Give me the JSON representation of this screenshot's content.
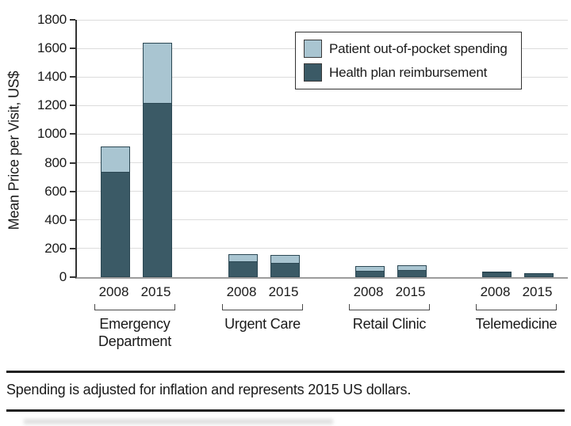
{
  "chart_data": {
    "type": "bar",
    "stacked": true,
    "title": "",
    "xlabel": "",
    "ylabel": "Mean Price per Visit, US$",
    "ylim": [
      0,
      1800
    ],
    "ytick_step": 200,
    "grid": true,
    "legend_position": "top-right",
    "series": [
      {
        "name": "Patient out-of-pocket spending",
        "color": "#a9c5d1"
      },
      {
        "name": "Health plan reimbursement",
        "color": "#3b5a66"
      }
    ],
    "groups": [
      {
        "label_lines": [
          "Emergency",
          "Department"
        ],
        "bars": [
          {
            "year": "2008",
            "health_plan_reimbursement": 730,
            "patient_out_of_pocket": 184
          },
          {
            "year": "2015",
            "health_plan_reimbursement": 1211,
            "patient_out_of_pocket": 426
          }
        ]
      },
      {
        "label_lines": [
          "Urgent Care"
        ],
        "bars": [
          {
            "year": "2008",
            "health_plan_reimbursement": 104,
            "patient_out_of_pocket": 56
          },
          {
            "year": "2015",
            "health_plan_reimbursement": 92,
            "patient_out_of_pocket": 62
          }
        ]
      },
      {
        "label_lines": [
          "Retail Clinic"
        ],
        "bars": [
          {
            "year": "2008",
            "health_plan_reimbursement": 40,
            "patient_out_of_pocket": 35
          },
          {
            "year": "2015",
            "health_plan_reimbursement": 45,
            "patient_out_of_pocket": 40
          }
        ]
      },
      {
        "label_lines": [
          "Telemedicine"
        ],
        "bars": [
          {
            "year": "2008",
            "health_plan_reimbursement": 28,
            "patient_out_of_pocket": 12
          },
          {
            "year": "2015",
            "health_plan_reimbursement": 22,
            "patient_out_of_pocket": 8
          }
        ]
      }
    ],
    "colors": {
      "bar_border": "#2c4854",
      "gridline": "#dcdcdc",
      "y_axis": "#333333",
      "x_axis": "#9c9c9c",
      "text": "#1a1a1a"
    }
  },
  "footnote": "Spending is adjusted for inflation and represents 2015 US dollars."
}
